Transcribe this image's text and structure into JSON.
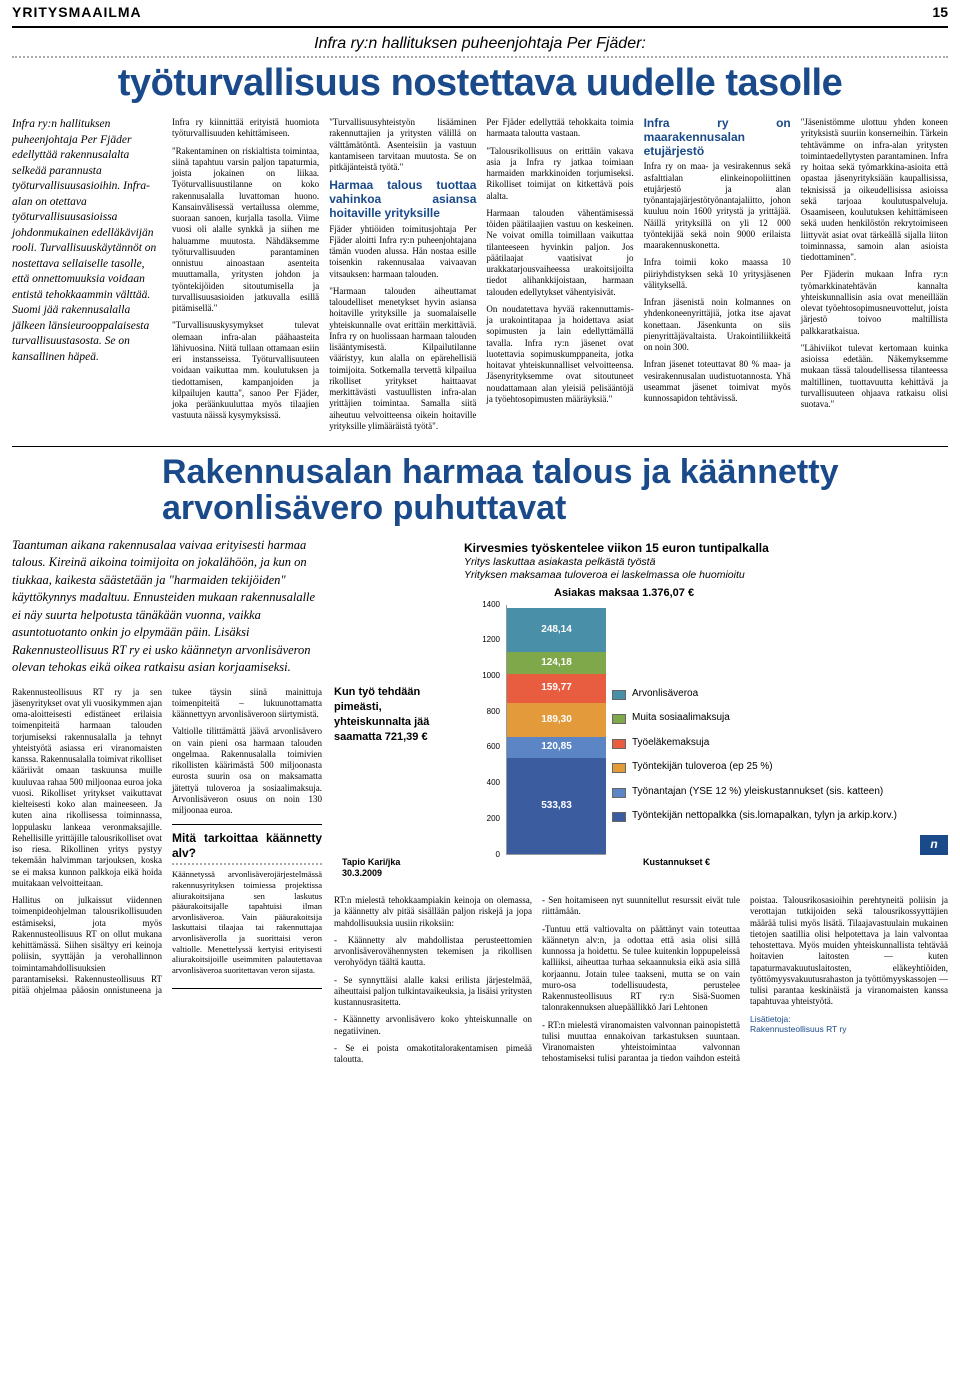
{
  "header": {
    "section": "YRITYSMAAILMA",
    "page": "15"
  },
  "article1": {
    "kicker": "Infra ry:n hallituksen puheenjohtaja Per Fjäder:",
    "headline": "työturvallisuus nostettava uudelle tasolle",
    "lead": "Infra ry:n hallituksen puheenjohtaja Per Fjäder edellyttää rakennusalalta selkeää parannusta työturvallisuusasioihin. Infra-alan on otettava työturvallisuusasioissa johdonmukainen edelläkävijän rooli. Turvallisuuskäytännöt on nostettava sellaiselle tasolle, että onnettomuuksia voidaan entistä tehokkaammin välttää. Suomi jää rakennusalalla jälkeen länsieurooppalaisesta turvallisuustasosta. Se on kansallinen häpeä.",
    "p1": "Infra ry kiinnittää erityistä huomiota työturvallisuuden kehittämiseen.",
    "p2": "\"Rakentaminen on riskialtista toimintaa, siinä tapahtuu varsin paljon tapaturmia, joista jokainen on liikaa. Työturvallisuustilanne on koko rakennusalalla luvattoman huono. Kansainvälisessä vertailussa olemme, suoraan sanoen, kurjalla tasolla. Viime vuosi oli alalle synkkä ja siihen me haluamme muutosta. Nähdäksemme työturvallisuuden parantaminen onnistuu ainoastaan asenteita muuttamalla, yritysten johdon ja työntekijöiden sitoutumisella ja turvallisuusasioiden jatkuvalla esillä pitämisellä.\"",
    "p3": "\"Turvallisuuskysymykset tulevat olemaan infra-alan päähaasteita lähivuosina. Niitä tullaan ottamaan esiin eri instansseissa. Työturvallisuuteen voidaan vaikuttaa mm. koulutuksen ja tiedottamisen, kampanjoiden ja kilpailujen kautta\", sanoo Per Fjäder, joka peräänkuuluttaa myös tilaajien vastuuta näissä kysymyksissä.",
    "p4": "\"Turvallisuusyhteistyön lisääminen rakennuttajien ja yritysten välillä on välttämätöntä. Asenteisiin ja vastuun kantamiseen tarvitaan muutosta. Se on pitkäjänteistä työtä.\"",
    "sub1": "Harmaa talous tuottaa vahinkoa asiansa hoitaville yrityksille",
    "p5": "Fjäder yhtiöiden toimitusjohtaja Per Fjäder aloitti Infra ry:n puheenjohtajana tämän vuoden alussa. Hän nostaa esille toisenkin rakennusalaa vaivaavan vitsauksen: harmaan talouden.",
    "p6": "\"Harmaan talouden aiheuttamat taloudelliset menetykset hyvin asiansa hoitaville yrityksille ja suomalaiselle yhteiskunnalle ovat erittäin merkittäviä. Infra ry on huolissaan harmaan talouden lisääntymisestä. Kilpailutilanne vääristyy, kun alalla on epärehellisiä toimijoita. Sotkemalla tervettä kilpailua rikolliset yritykset haittaavat merkittävästi vastuullisten infra-alan yrittäjien toimintaa. Samalla siitä aiheutuu velvoitteensa oikein hoitaville yrityksille ylimääräistä työtä\".",
    "p7": "Per Fjäder edellyttää tehokkaita toimia harmaata taloutta vastaan.",
    "p8": "\"Talousrikollisuus on erittäin vakava asia ja Infra ry jatkaa toimiaan harmaiden markkinoiden torjumiseksi. Rikolliset toimijat on kitkettävä pois alalta.",
    "p9": "Harmaan talouden vähentämisessä töiden päätilaajien vastuu on keskeinen. Ne voivat omilla toimillaan vaikuttaa tilanteeseen hyvinkin paljon. Jos päätilaajat vaatisivat jo urakkatarjousvaiheessa urakoitsijoilta tiedot alihankkijoistaan, harmaan talouden edellytykset vähentyisivät.",
    "p10": "On noudatettava hyvää rakennuttamis- ja urakointitapaa ja hoidettava asiat sopimusten ja lain edellyttämällä tavalla. Infra ry:n jäsenet ovat luotettavia sopimuskumppaneita, jotka hoitavat yhteiskunnalliset velvoitteensa. Jäsenyrityksemme ovat sitoutuneet noudattamaan alan yleisiä pelisääntöjä ja työehtosopimusten määräyksiä.\"",
    "sub2": "Infra ry on maarakennusalan etujärjestö",
    "p11": "Infra ry on maa- ja vesirakennus sekä asfalttialan elinkeinopoliittinen etujärjestö ja alan työnantajajärjestötyönantajaliitto, johon kuuluu noin 1600 yritystä ja yrittäjää. Näillä yrityksillä on yli 12 000 työntekijää sekä noin 9000 erilaista maarakennuskonetta.",
    "p12": "Infra toimii koko maassa 10 piiriyhdistyksen sekä 10 yritysjäsenen välityksellä.",
    "p13": "Infran jäsenistä noin kolmannes on yhdenkoneenyrittäjiä, jotka itse ajavat konettaan. Jäsenkunta on siis pienyrittäjävaltaista. Urakointiliikkeitä on noin 300.",
    "p14": "Infran jäsenet toteuttavat 80 % maa- ja vesirakennusalan uudistuotannosta. Yhä useammat jäsenet toimivat myös kunnossapidon tehtävissä.",
    "p15": "\"Jäsenistömme ulottuu yhden koneen yrityksistä suuriin konserneihin. Tärkein tehtävämme on infra-alan yritysten toimintaedellytysten parantaminen. Infra ry hoitaa sekä työmarkkina-asioita että opastaa jäsenyrityksiään kaupallisissa, teknisissä ja oikeudellisissa asioissa sekä tarjoaa koulutuspalveluja. Osaamiseen, koulutuksen kehittämiseen sekä uuden henkilöstön rekrytoimiseen liittyvät asiat ovat tärkeällä sijalla liiton toiminnassa, samoin alan asioista tiedottaminen\".",
    "p16": "Per Fjäderin mukaan Infra ry:n työmarkkinatehtävän kannalta yhteiskunnallisin asia ovat meneillään olevat työehtosopimusneuvottelut, joista järjestö toivoo maltillista palkkaratkaisua.",
    "p17": "\"Lähiviikot tulevat kertomaan kuinka asioissa edetään. Näkemyksemme mukaan tässä taloudellisessa tilanteessa maltillinen, tuottavuutta kehittävä ja turvallisuuteen ohjaava ratkaisu olisi suotava.\""
  },
  "article2": {
    "headline": "Rakennusalan harmaa talous ja käännetty arvonlisävero puhuttavat",
    "lead": "Taantuman aikana rakennusalaa vaivaa erityisesti harmaa talous. Kireinä aikoina toimijoita on jokalähöön, ja kun on tiukkaa, kaikesta säästetään ja \"harmaiden tekijöiden\" käyttökynnys madaltuu. Ennusteiden mukaan rakennusalalle ei näy suurta helpotusta tänäkään vuonna, vaikka asuntotuotanto onkin jo elpymään päin. Lisäksi Rakennusteollisuus RT ry ei usko käännetyn arvonlisäveron olevan tehokas eikä oikea ratkaisu asian korjaamiseksi.",
    "p1": "Rakennusteollisuus RT ry ja sen jäsenyritykset ovat yli vuosikymmen ajan oma-aloitteisesti edistäneet erilaisia toimenpiteitä harmaan talouden torjumiseksi rakennusalalla ja tehnyt yhteistyötä asiassa eri viranomaisten kanssa. Rakennusalalla toimivat rikolliset kääriivät omaan taskuunsa muille kuuluvaa rahaa 500 miljoonaa euroa joka vuosi. Rikolliset yritykset vaikuttavat kielteisesti koko alan maineeseen. Ja kuten aina rikollisessa toiminnassa, loppulasku lankeaa veronmaksajille. Rehellisille yrittäjille talousrikolliset ovat iso riesa. Rikollinen yritys pystyy tekemään halvimman tarjouksen, koska se ei maksa kunnon palkkoja eikä hoida muitakaan velvoitteitaan.",
    "p2": "Hallitus on julkaissut viidennen toimenpideohjelman talousrikollisuuden estämiseksi, jota myös Rakennusteollisuus RT on ollut mukana kehittämässä. Siihen sisältyy eri keinoja poliisin, syyttäjän ja verohallinnon toimintamahdollisuuksien parantamiseksi. Rakennusteollisuus RT pitää ohjelmaa pääosin onnistuneena ja tukee täysin siinä mainittuja toimenpiteitä – lukuunottamatta käännettyyn arvonlisäveroon siirtymistä.",
    "p3": "Valtiolle tilittämättä jäävä arvonlisävero on vain pieni osa harmaan talouden ongelmaa. Rakennusalalla toimivien rikollisten käärimästä 500 miljoonasta eurosta suurin osa on maksamatta jätettyä tuloveroa ja sosiaalimaksuja. Arvonlisäveron osuus on noin 130 miljoonaa euroa.",
    "infobox_title": "Mitä tarkoittaa käännetty alv?",
    "infobox_body": "Käännetyssä arvonlisäverojärjestelmässä rakennusyrityksen toimiessa projektissa aliurakoitsijana sen laskutus pääurakoitsijalle tapahtuisi ilman arvonlisäveroa. Vain pääurakoitsija laskuttaisi tilaajaa tai rakennuttajaa arvonlisäverolla ja suorittaisi veron valtiolle. Menettelyssä kertyisi erityisesti aliurakoitsijoille useimmiten palautettavaa arvonlisäveroa suoritettavan veron sijasta.",
    "p4": "RT:n mielestä tehokkaampiakin keinoja on olemassa, ja käännetty alv pitää sisällään paljon riskejä ja jopa mahdollisuuksia uusiin rikoksiin:",
    "p5": "- Käännetty alv mahdollistaa perusteettomien arvonlisäverovähennysten tekemisen ja rikollisen verohyödyn täältä kautta.",
    "p6": "- Se synnyttäisi alalle kaksi erilista järjestelmää, aiheuttaisi paljon tulkintavaikeuksia, ja lisäisi yritysten kustannusrasitetta.",
    "p7": "- Käännetty arvonlisävero koko yhteiskunnalle on negatiivinen.",
    "p8": "- Se ei poista omakotitalorakentamisen pimeää taloutta.",
    "p9": "- Sen hoitamiseen nyt suunnitellut resurssit eivät tule riittämään.",
    "p10": "-Tuntuu että valtiovalta on päättänyt vain toteuttaa käännetyn alv:n, ja odottaa että asia olisi sillä kunnossa ja hoidettu. Se tulee kuitenkin loppupeleissä kalliiksi, aiheuttaa turhaa sekaannuksia eikä asia sillä korjaannu. Jotain tulee taakseni, mutta se on vain muro-osa todellisuudesta, perustelee Rakennusteollisuus RT ry:n Sisä-Suomen talonrakennuksen aluepäällikkö Jari Lehtonen",
    "p11": "- RT:n mielestä viranomaisten valvonnan painopistettä tulisi muuttaa ennakoivan tarkastuksen suuntaan. Viranomaisten yhteistoimintaa valvonnan tehostamiseksi tulisi parantaa ja tiedon vaihdon esteitä poistaa. Talousrikosasioihin perehtyneitä poliisin ja verottajan tutkijoiden sekä talousrikossyyttäjien määrää tulisi myös lisätä. Tilaajavastuulain mukainen tietojen saatillia olisi helpotettava ja lain valvontaa tehostettava. Myös muiden yhteiskunnallista tehtävää hoitavien laitosten — kuten tapaturmavakuutuslaitosten, eläkeyhtiöiden, työttömyysvakuutusrahaston ja työttömyyskassojen — tulisi parantaa keskinäistä ja viranomaisten kanssa tapahtuvaa yhteistyötä.",
    "more": "Lisätietoja:\nRakennusteollisuus RT ry"
  },
  "chart": {
    "title": "Kirvesmies työskentelee viikon 15 euron tuntipalkalla",
    "sub1": "Yritys laskuttaa asiakasta pelkästä työstä",
    "sub2": "Yrityksen maksamaa tuloveroa ei laskelmassa ole huomioitu",
    "amount": "Asiakas maksaa 1.376,07 €",
    "left_label": "Kun työ tehdään pimeästi, yhteiskunnalta jää saamatta 721,39 €",
    "ymax": 1400,
    "ytick_step": 200,
    "segments": [
      {
        "label": "533,83",
        "value": 533.83,
        "color": "#3b5da0",
        "legend": "Työntekijän nettopalkka (sis.lomapalkan, tylyn ja arkip.korv.)"
      },
      {
        "label": "120,85",
        "value": 120.85,
        "color": "#5b85c4",
        "legend": "Työnantajan (YSE 12 %) yleiskustannukset (sis. katteen)"
      },
      {
        "label": "189,30",
        "value": 189.3,
        "color": "#e39a3a",
        "legend": "Työntekijän tuloveroa (ep 25 %)"
      },
      {
        "label": "159,77",
        "value": 159.77,
        "color": "#e85c3f",
        "legend": "Työeläkemaksuja"
      },
      {
        "label": "124,18",
        "value": 124.18,
        "color": "#7fa84a",
        "legend": "Muita sosiaalimaksuja"
      },
      {
        "label": "248,14",
        "value": 248.14,
        "color": "#4a8fa8",
        "legend": "Arvonlisäveroa"
      }
    ],
    "footer_left": "Tapio Kari/jka\n30.3.2009",
    "footer_right": "Kustannukset €",
    "logo": "n"
  }
}
